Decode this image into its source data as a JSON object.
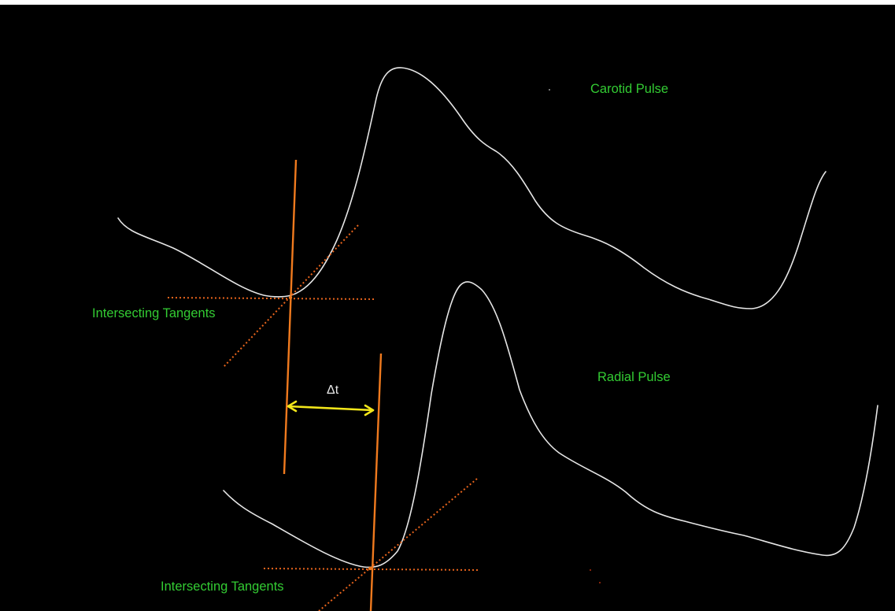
{
  "labels": {
    "carotid_pulse": "Carotid Pulse",
    "radial_pulse": "Radial Pulse",
    "intersecting_tangents_upper": "Intersecting Tangents",
    "intersecting_tangents_lower": "Intersecting Tangents",
    "delta_t": "Δt"
  },
  "colors": {
    "background": "#000000",
    "waveform": "#e6e6e6",
    "label_text": "#33cc33",
    "vertical_marker": "#f07a1e",
    "tangent_dotted": "#e8641c",
    "delta_arrow": "#f2e61a",
    "delta_text": "#e6e6e6"
  }
}
